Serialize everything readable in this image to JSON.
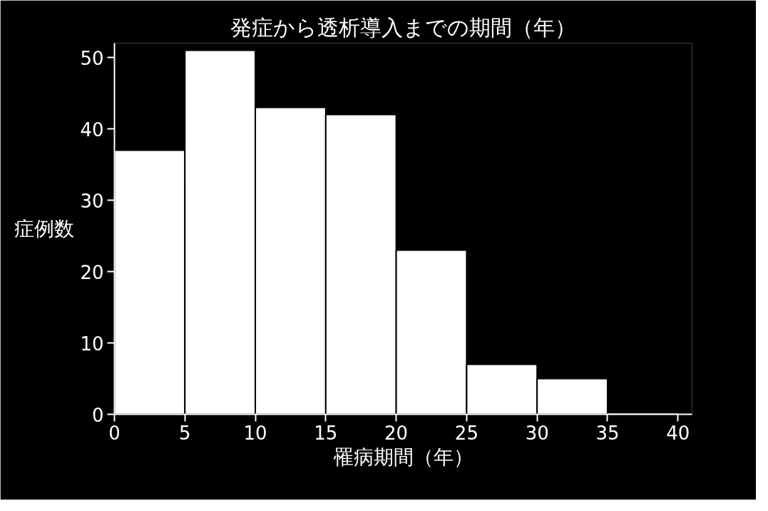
{
  "chart_data": {
    "type": "histogram",
    "title": "発症から透析導入までの期間（年）",
    "xlabel": "罹病期間（年）",
    "ylabel": "症例数",
    "bins": [
      0,
      5,
      10,
      15,
      20,
      25,
      30,
      35,
      40
    ],
    "values": [
      37,
      51,
      43,
      42,
      23,
      7,
      5,
      0
    ],
    "color": "#ffffff",
    "xlim": [
      0,
      41
    ],
    "xticks": [
      0,
      5,
      10,
      15,
      20,
      25,
      30,
      35,
      40
    ],
    "ylim": [
      0,
      52
    ],
    "yticks": [
      0,
      10,
      20,
      30,
      40,
      50
    ],
    "grid": false
  }
}
